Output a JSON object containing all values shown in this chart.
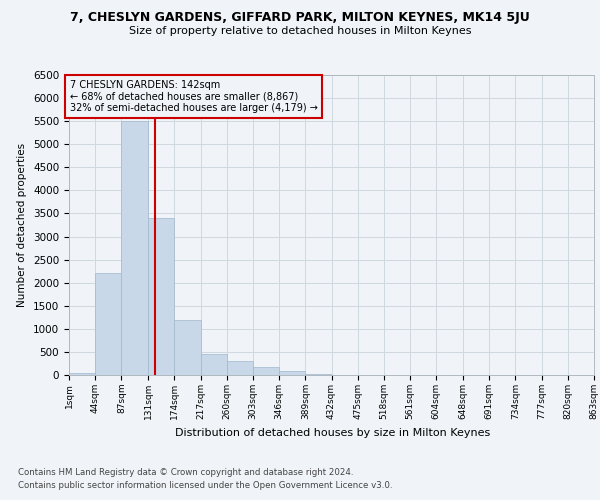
{
  "title1": "7, CHESLYN GARDENS, GIFFARD PARK, MILTON KEYNES, MK14 5JU",
  "title2": "Size of property relative to detached houses in Milton Keynes",
  "xlabel": "Distribution of detached houses by size in Milton Keynes",
  "ylabel": "Number of detached properties",
  "footnote1": "Contains HM Land Registry data © Crown copyright and database right 2024.",
  "footnote2": "Contains public sector information licensed under the Open Government Licence v3.0.",
  "annotation_line1": "7 CHESLYN GARDENS: 142sqm",
  "annotation_line2": "← 68% of detached houses are smaller (8,867)",
  "annotation_line3": "32% of semi-detached houses are larger (4,179) →",
  "property_value": 142,
  "bin_edges": [
    1,
    44,
    87,
    131,
    174,
    217,
    260,
    303,
    346,
    389,
    432,
    475,
    518,
    561,
    604,
    648,
    691,
    734,
    777,
    820,
    863
  ],
  "bar_heights": [
    50,
    2200,
    5500,
    3400,
    1200,
    450,
    300,
    170,
    80,
    30,
    5,
    2,
    1,
    0,
    0,
    0,
    0,
    0,
    0,
    0
  ],
  "bar_color": "#c8d8e8",
  "bar_edge_color": "#a0b8cc",
  "marker_color": "#cc0000",
  "bg_color": "#f0f4f8",
  "grid_color": "#d0d8e0",
  "ylim": [
    0,
    6500
  ],
  "yticks": [
    0,
    500,
    1000,
    1500,
    2000,
    2500,
    3000,
    3500,
    4000,
    4500,
    5000,
    5500,
    6000,
    6500
  ]
}
